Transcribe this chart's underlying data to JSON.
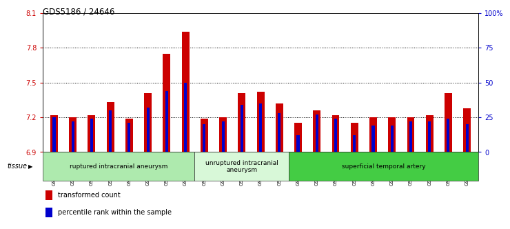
{
  "title": "GDS5186 / 24646",
  "samples": [
    "GSM1306885",
    "GSM1306886",
    "GSM1306887",
    "GSM1306888",
    "GSM1306889",
    "GSM1306890",
    "GSM1306891",
    "GSM1306892",
    "GSM1306893",
    "GSM1306894",
    "GSM1306895",
    "GSM1306896",
    "GSM1306897",
    "GSM1306898",
    "GSM1306899",
    "GSM1306900",
    "GSM1306901",
    "GSM1306902",
    "GSM1306903",
    "GSM1306904",
    "GSM1306905",
    "GSM1306906",
    "GSM1306907"
  ],
  "red_values": [
    7.22,
    7.2,
    7.22,
    7.33,
    7.19,
    7.41,
    7.75,
    7.94,
    7.19,
    7.2,
    7.41,
    7.42,
    7.32,
    7.15,
    7.26,
    7.22,
    7.15,
    7.2,
    7.2,
    7.2,
    7.22,
    7.41,
    7.28
  ],
  "blue_values": [
    25,
    22,
    24,
    30,
    21,
    32,
    44,
    50,
    20,
    22,
    34,
    35,
    28,
    12,
    27,
    24,
    12,
    19,
    19,
    22,
    22,
    24,
    20
  ],
  "groups": [
    {
      "label": "ruptured intracranial aneurysm",
      "start": 0,
      "end": 8,
      "color": "#aeeaae"
    },
    {
      "label": "unruptured intracranial\naneurysm",
      "start": 8,
      "end": 13,
      "color": "#d8f8d8"
    },
    {
      "label": "superficial temporal artery",
      "start": 13,
      "end": 23,
      "color": "#44cc44"
    }
  ],
  "ylim_left": [
    6.9,
    8.1
  ],
  "ylim_right": [
    0,
    100
  ],
  "yticks_left": [
    6.9,
    7.2,
    7.5,
    7.8,
    8.1
  ],
  "yticks_right": [
    0,
    25,
    50,
    75,
    100
  ],
  "ytick_labels_right": [
    "0",
    "25",
    "50",
    "75",
    "100%"
  ],
  "hlines": [
    7.2,
    7.5,
    7.8
  ],
  "bar_color_red": "#cc0000",
  "bar_color_blue": "#0000cc",
  "red_bar_width": 0.4,
  "blue_bar_width": 0.15,
  "background_color": "#ffffff",
  "plot_bg_color": "#ffffff",
  "xtick_bg_color": "#cccccc",
  "tissue_label": "tissue",
  "legend_items": [
    {
      "color": "#cc0000",
      "label": "transformed count"
    },
    {
      "color": "#0000cc",
      "label": "percentile rank within the sample"
    }
  ]
}
